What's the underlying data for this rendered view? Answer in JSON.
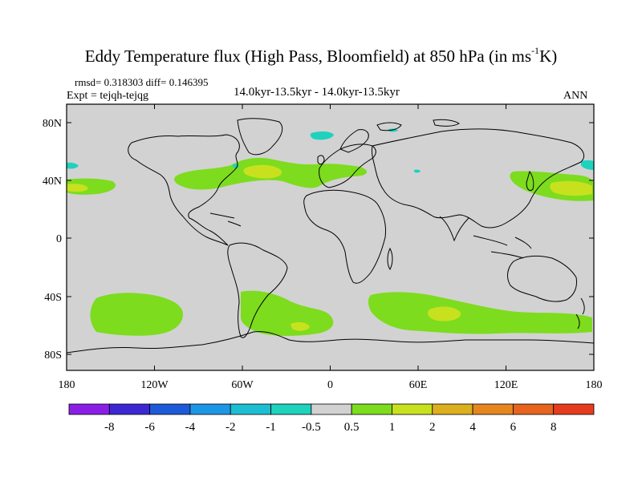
{
  "title": {
    "main": "Eddy Temperature flux (High Pass, Bloomfield) at 850 hPa (in ms",
    "superscript": "-1",
    "suffix": "K)"
  },
  "stats": "rmsd= 0.318303 diff= 0.146395",
  "experiment": "Expt = tejqh-tejqg",
  "period": "14.0kyr-13.5kyr - 14.0kyr-13.5kyr",
  "season": "ANN",
  "map": {
    "lat_labels": [
      "80N",
      "40N",
      "0",
      "40S",
      "80S"
    ],
    "lon_labels": [
      "180",
      "120W",
      "60W",
      "0",
      "60E",
      "120E",
      "180"
    ]
  },
  "colorbar": {
    "labels": [
      "-8",
      "-6",
      "-4",
      "-2",
      "-1",
      "-0.5",
      "0.5",
      "1",
      "2",
      "4",
      "6",
      "8"
    ],
    "colors": [
      "#8a1ee6",
      "#3c28d2",
      "#1e5ad7",
      "#1e96e6",
      "#1ebed2",
      "#1ed2be",
      "#d2d2d2",
      "#7ddc1e",
      "#c8e11e",
      "#dcaf1e",
      "#e6871e",
      "#e6641e",
      "#e63c1e"
    ]
  },
  "colors": {
    "background_field": "#d2d2d2",
    "positive_low": "#7ddc1e",
    "positive_mid": "#c8e11e",
    "positive_high": "#dcaf1e",
    "negative_low": "#1ed2be"
  }
}
